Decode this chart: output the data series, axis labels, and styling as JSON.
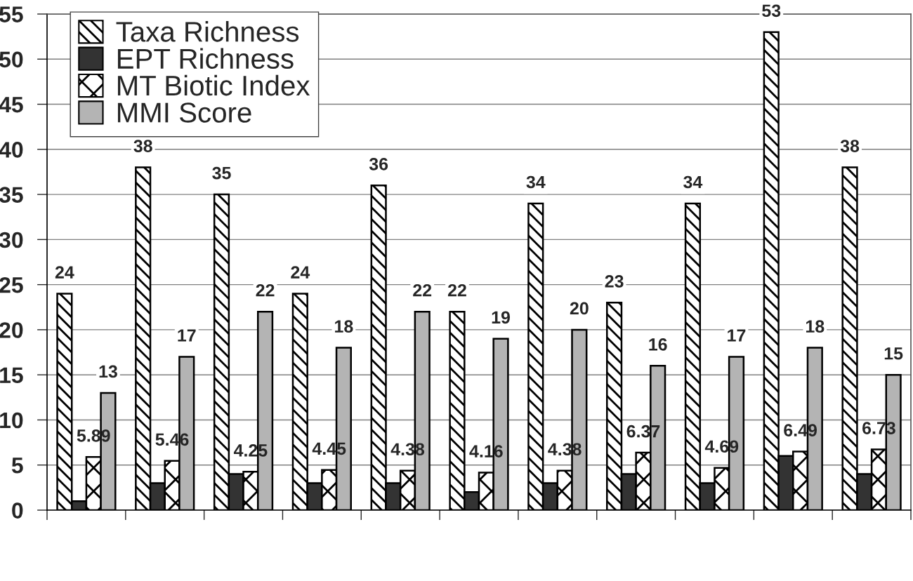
{
  "chart_data": {
    "type": "bar",
    "categories": [
      null,
      null,
      null,
      null,
      null,
      null,
      null,
      null,
      null,
      null,
      null
    ],
    "series": [
      {
        "name": "Taxa Richness",
        "color": "#000000",
        "values": [
          24,
          38,
          35,
          24,
          36,
          22,
          34,
          23,
          34,
          53,
          38
        ],
        "value_labels": [
          "24",
          "38",
          "35",
          "24",
          "36",
          "22",
          "34",
          "23",
          "34",
          "53",
          "38"
        ]
      },
      {
        "name": "EPT Richness",
        "color": "#333333",
        "values": [
          1,
          3,
          4,
          3,
          3,
          2,
          3,
          4,
          3,
          6,
          4
        ]
      },
      {
        "name": "MT Biotic Index",
        "color": "#000000",
        "values": [
          5.89,
          5.46,
          4.25,
          4.45,
          4.38,
          4.16,
          4.38,
          6.37,
          4.69,
          6.49,
          6.73
        ],
        "value_labels": [
          "5.89",
          "5.46",
          "4.25",
          "4.45",
          "4.38",
          "4.16",
          "4.38",
          "6.37",
          "4.69",
          "6.49",
          "6.73"
        ]
      },
      {
        "name": "MMI Score",
        "color": "#b4b4b4",
        "values": [
          13,
          17,
          22,
          18,
          22,
          19,
          20,
          16,
          17,
          18,
          15
        ],
        "value_labels": [
          "13",
          "17",
          "22",
          "18",
          "22",
          "19",
          "20",
          "16",
          "17",
          "18",
          "15"
        ]
      }
    ],
    "ylim": [
      0,
      55
    ],
    "yticks": [
      0,
      5,
      10,
      15,
      20,
      25,
      30,
      35,
      40,
      45,
      50,
      55
    ],
    "grid": "y",
    "legend": "top left"
  }
}
